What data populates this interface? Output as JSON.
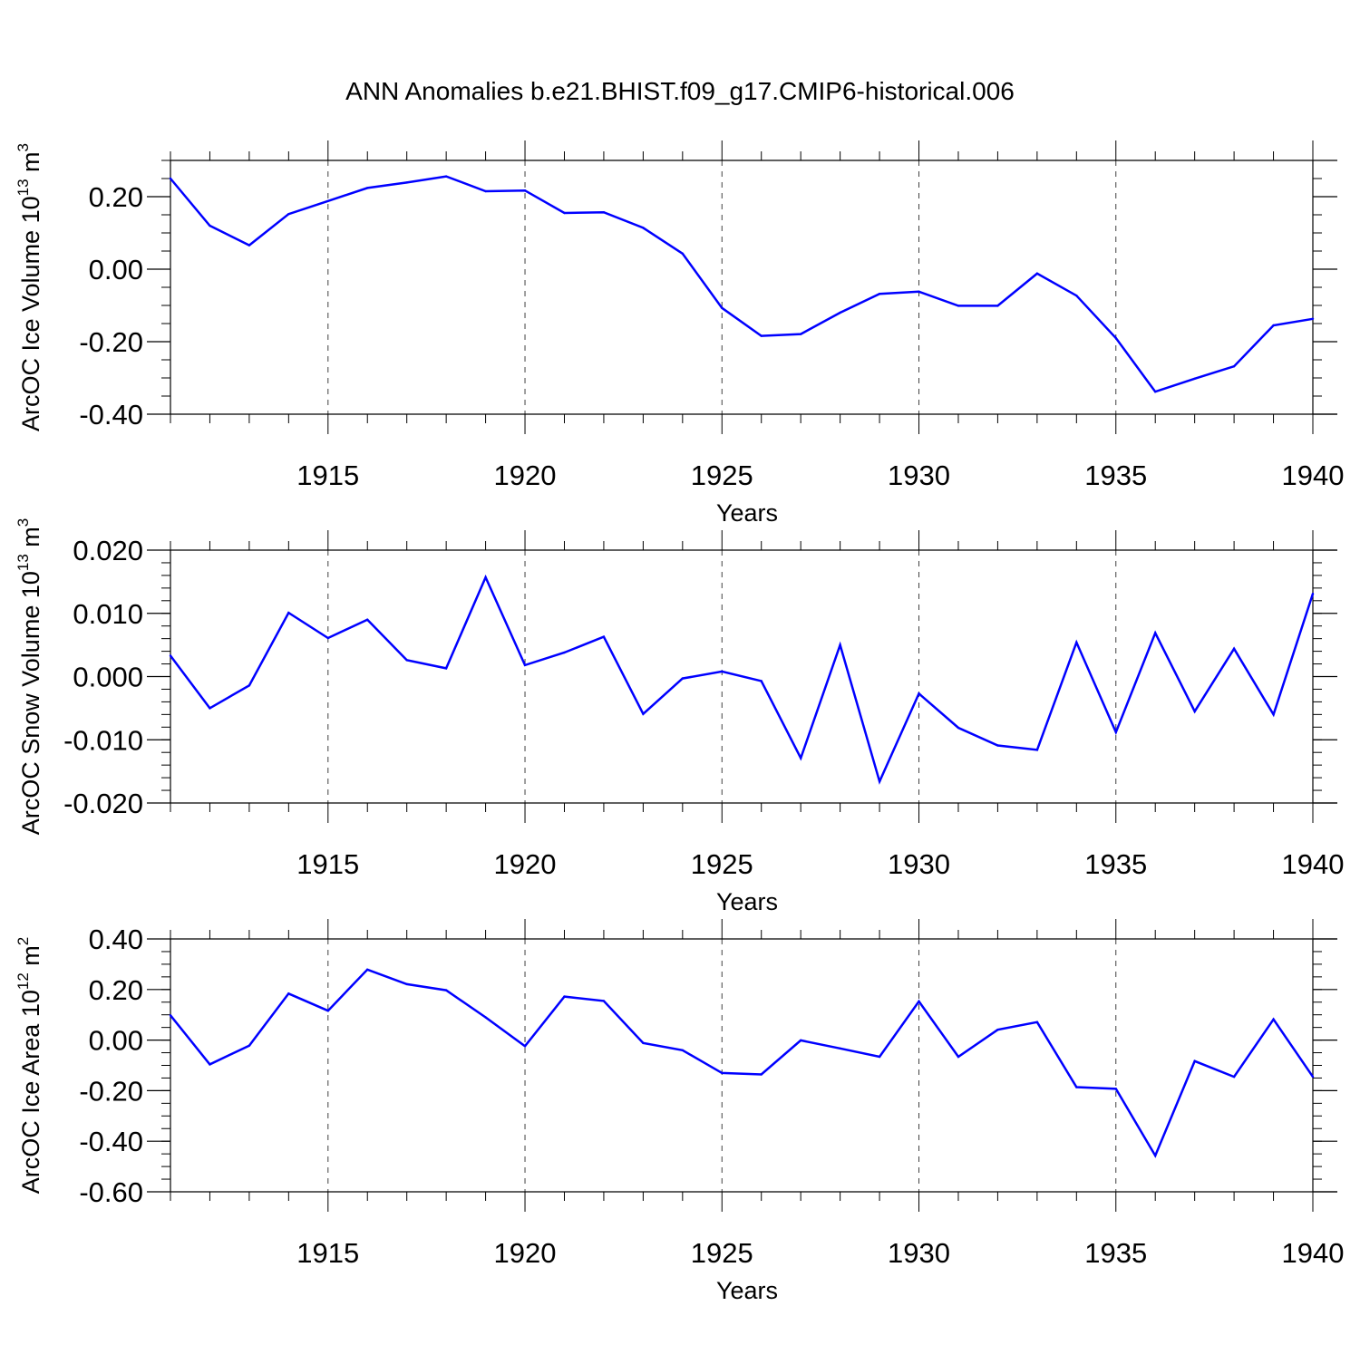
{
  "figure_title": "ANN Anomalies b.e21.BHIST.f09_g17.CMIP6-historical.006",
  "colors": {
    "series": "#0000ff",
    "axes": "#000000",
    "grid": "#000000"
  },
  "chart_data": [
    {
      "type": "line",
      "title": "ANN Anomalies b.e21.BHIST.f09_g17.CMIP6-historical.006",
      "xlabel": "Years",
      "ylabel": {
        "main": "ArcOC Ice Volume 10",
        "sup": "13",
        "unit": " m",
        "unit_sup": "3"
      },
      "xlim": [
        1911,
        1940
      ],
      "ylim": [
        -0.4,
        0.3
      ],
      "yticks": [
        -0.4,
        -0.2,
        0.0,
        0.2
      ],
      "ytick_labels": [
        "-0.40",
        "-0.20",
        "0.00",
        "0.20"
      ],
      "y_minor_step": 0.05,
      "xticks": [
        1915,
        1920,
        1925,
        1930,
        1935,
        1940
      ],
      "xtick_labels": [
        "1915",
        "1920",
        "1925",
        "1930",
        "1935",
        "1940"
      ],
      "x": [
        1911,
        1912,
        1913,
        1914,
        1915,
        1916,
        1917,
        1918,
        1919,
        1920,
        1921,
        1922,
        1923,
        1924,
        1925,
        1926,
        1927,
        1928,
        1929,
        1930,
        1931,
        1932,
        1933,
        1934,
        1935,
        1936,
        1937,
        1938,
        1939,
        1940
      ],
      "values": [
        0.25,
        0.12,
        0.066,
        0.152,
        0.188,
        0.224,
        0.239,
        0.256,
        0.215,
        0.217,
        0.155,
        0.157,
        0.114,
        0.043,
        -0.107,
        -0.184,
        -0.179,
        -0.12,
        -0.068,
        -0.062,
        -0.101,
        -0.101,
        -0.012,
        -0.073,
        -0.19,
        -0.338,
        -0.302,
        -0.268,
        -0.155,
        -0.137
      ]
    },
    {
      "type": "line",
      "xlabel": "Years",
      "ylabel": {
        "main": "ArcOC Snow Volume 10",
        "sup": "13",
        "unit": " m",
        "unit_sup": "3"
      },
      "xlim": [
        1911,
        1940
      ],
      "ylim": [
        -0.02,
        0.02
      ],
      "yticks": [
        -0.02,
        -0.01,
        0.0,
        0.01,
        0.02
      ],
      "ytick_labels": [
        "-0.020",
        "-0.010",
        "0.000",
        "0.010",
        "0.020"
      ],
      "y_minor_step": 0.002,
      "xticks": [
        1915,
        1920,
        1925,
        1930,
        1935,
        1940
      ],
      "xtick_labels": [
        "1915",
        "1920",
        "1925",
        "1930",
        "1935",
        "1940"
      ],
      "x": [
        1911,
        1912,
        1913,
        1914,
        1915,
        1916,
        1917,
        1918,
        1919,
        1920,
        1921,
        1922,
        1923,
        1924,
        1925,
        1926,
        1927,
        1928,
        1929,
        1930,
        1931,
        1932,
        1933,
        1934,
        1935,
        1936,
        1937,
        1938,
        1939,
        1940
      ],
      "values": [
        0.0033,
        -0.005,
        -0.0014,
        0.0101,
        0.0061,
        0.009,
        0.0026,
        0.0013,
        0.0157,
        0.0018,
        0.0038,
        0.0063,
        -0.0059,
        -0.0003,
        0.0008,
        -0.0007,
        -0.0129,
        0.005,
        -0.0166,
        -0.0027,
        -0.0081,
        -0.0109,
        -0.0116,
        0.0054,
        -0.0088,
        0.0069,
        -0.0055,
        0.0044,
        -0.006,
        0.0131
      ]
    },
    {
      "type": "line",
      "xlabel": "Years",
      "ylabel": {
        "main": "ArcOC Ice Area 10",
        "sup": "12",
        "unit": " m",
        "unit_sup": "2"
      },
      "xlim": [
        1911,
        1940
      ],
      "ylim": [
        -0.6,
        0.4
      ],
      "yticks": [
        -0.6,
        -0.4,
        -0.2,
        0.0,
        0.2,
        0.4
      ],
      "ytick_labels": [
        "-0.60",
        "-0.40",
        "-0.20",
        "0.00",
        "0.20",
        "0.40"
      ],
      "y_minor_step": 0.05,
      "xticks": [
        1915,
        1920,
        1925,
        1930,
        1935,
        1940
      ],
      "xtick_labels": [
        "1915",
        "1920",
        "1925",
        "1930",
        "1935",
        "1940"
      ],
      "x": [
        1911,
        1912,
        1913,
        1914,
        1915,
        1916,
        1917,
        1918,
        1919,
        1920,
        1921,
        1922,
        1923,
        1924,
        1925,
        1926,
        1927,
        1928,
        1929,
        1930,
        1931,
        1932,
        1933,
        1934,
        1935,
        1936,
        1937,
        1938,
        1939,
        1940
      ],
      "values": [
        0.098,
        -0.096,
        -0.022,
        0.184,
        0.116,
        0.279,
        0.221,
        0.197,
        0.09,
        -0.024,
        0.172,
        0.155,
        -0.012,
        -0.04,
        -0.13,
        -0.136,
        -0.001,
        -0.033,
        -0.066,
        0.153,
        -0.066,
        0.041,
        0.071,
        -0.186,
        -0.193,
        -0.457,
        -0.083,
        -0.145,
        0.082,
        -0.145
      ]
    }
  ]
}
